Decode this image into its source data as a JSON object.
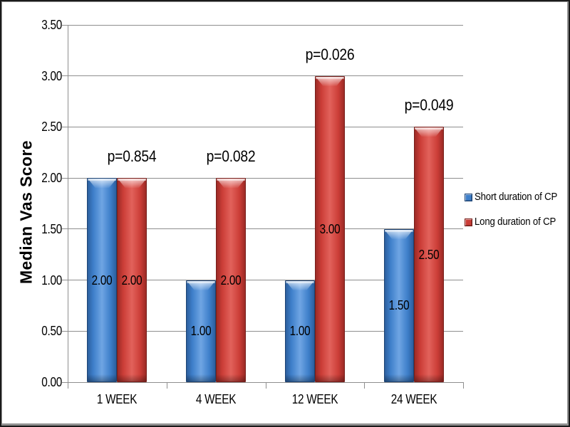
{
  "chart_data": {
    "type": "bar",
    "title": "",
    "xlabel": "",
    "ylabel": "Median Vas Score",
    "categories": [
      "1 WEEK",
      "4 WEEK",
      "12 WEEK",
      "24 WEEK"
    ],
    "series": [
      {
        "name": "Short duration of CP",
        "color": "#3E7FCA",
        "color_light": "#6FA5E3",
        "color_dark": "#2C5F9E",
        "color_edge": "#1E4474",
        "values": [
          2.0,
          1.0,
          1.0,
          1.5
        ],
        "labels": [
          "2.00",
          "1.00",
          "1.00",
          "1.50"
        ]
      },
      {
        "name": "Long duration of CP",
        "color": "#CB3D37",
        "color_light": "#E2625B",
        "color_dark": "#9C2B26",
        "color_edge": "#771F1B",
        "values": [
          2.0,
          2.0,
          3.0,
          2.5
        ],
        "labels": [
          "2.00",
          "2.00",
          "3.00",
          "2.50"
        ]
      }
    ],
    "annotations": [
      {
        "category": "1 WEEK",
        "series": "Long duration of CP",
        "text": "p=0.854"
      },
      {
        "category": "4 WEEK",
        "series": "Long duration of CP",
        "text": "p=0.082"
      },
      {
        "category": "12 WEEK",
        "series": "Long duration of CP",
        "text": "p=0.026"
      },
      {
        "category": "24 WEEK",
        "series": "Long duration of CP",
        "text": "p=0.049"
      }
    ],
    "ylim": [
      0,
      3.5
    ],
    "ytick_step": 0.5,
    "ytick_labels": [
      "0.00",
      "0.50",
      "1.00",
      "1.50",
      "2.00",
      "2.50",
      "3.00",
      "3.50"
    ],
    "grid": true,
    "legend_position": "right",
    "axis_color": "#8E8E8E",
    "text_color": "#000000"
  }
}
